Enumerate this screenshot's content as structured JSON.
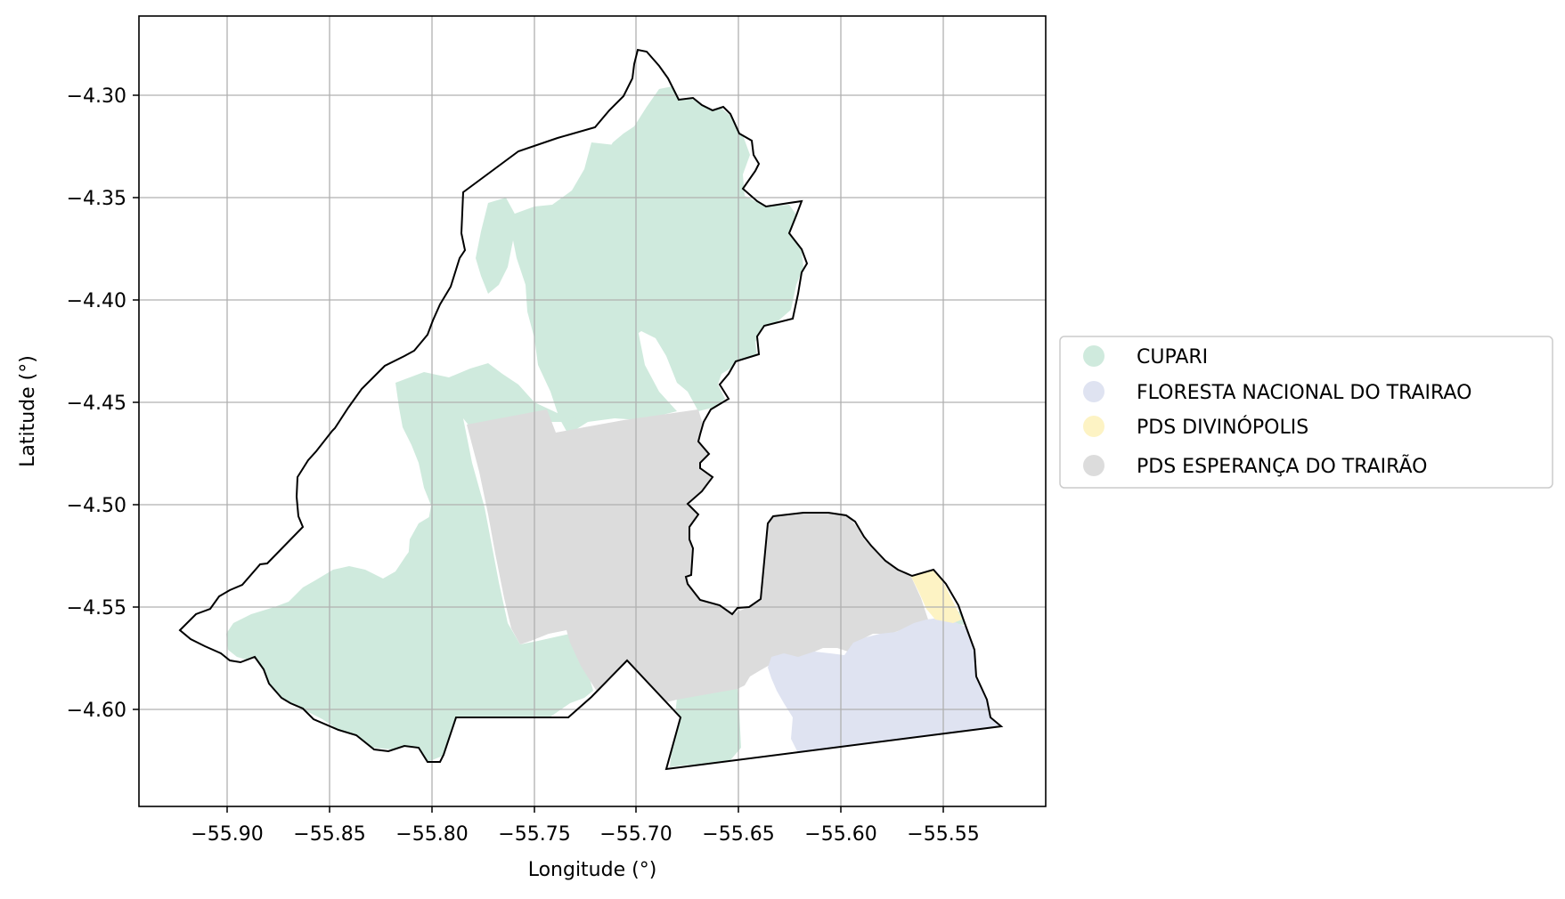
{
  "figure": {
    "xlabel": "Longitude (°)",
    "ylabel": "Latitude (°)",
    "xticks": [
      "−55.90",
      "−55.85",
      "−55.80",
      "−55.75",
      "−55.70",
      "−55.65",
      "−55.60",
      "−55.55"
    ],
    "yticks": [
      "−4.30",
      "−4.35",
      "−4.40",
      "−4.45",
      "−4.50",
      "−4.55",
      "−4.60"
    ],
    "grid": true
  },
  "legend": {
    "placement": "right-center",
    "items": [
      {
        "label": "CUPARI",
        "color": "#cfeadd"
      },
      {
        "label": "FLORESTA NACIONAL DO TRAIRAO",
        "color": "#dfe3f1"
      },
      {
        "label": "PDS DIVINÓPOLIS",
        "color": "#fdf3c4"
      },
      {
        "label": "PDS ESPERANÇA DO TRAIRÃO",
        "color": "#dcdcdc"
      }
    ]
  },
  "colors": {
    "cupari": "#cfeadd",
    "floresta": "#dfe3f1",
    "divinopolis": "#fdf3c4",
    "esperanca": "#dcdcdc",
    "boundary": "#000000",
    "grid": "#b0b0b0"
  }
}
